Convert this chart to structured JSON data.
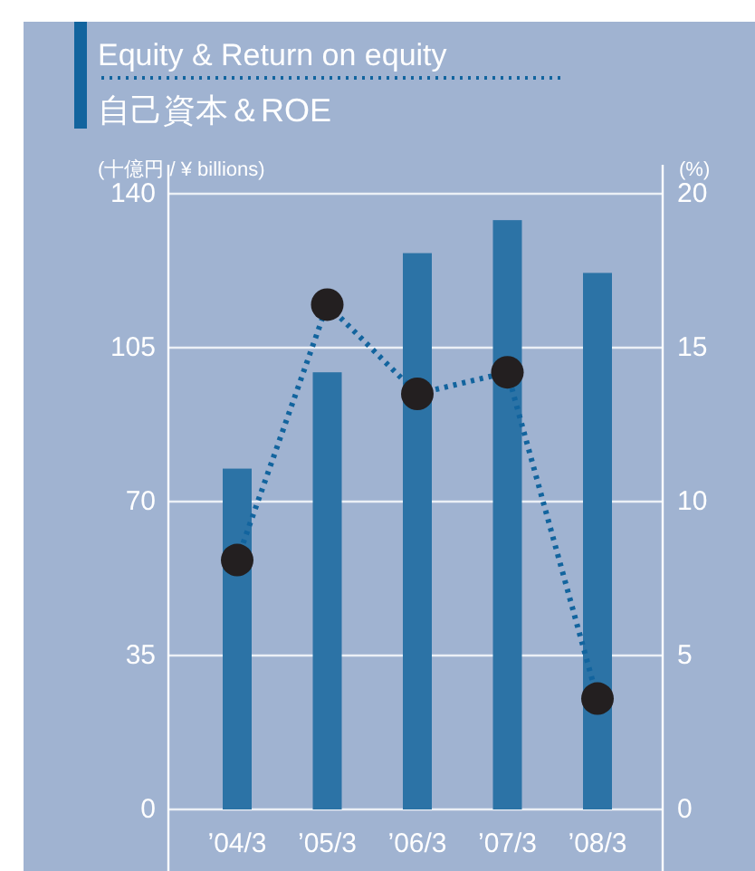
{
  "chart_data": {
    "type": "bar",
    "title": "Equity & Return on equity",
    "subtitle": "自己資本＆ROE",
    "ylabel": "(十億円 / ¥ billions)",
    "y2label": "(%)",
    "categories": [
      "’04/3",
      "’05/3",
      "’06/3",
      "’07/3",
      "’08/3"
    ],
    "series": [
      {
        "color": "#2c73a6",
        "values": [
          77.5,
          99.4,
          126.5,
          134,
          122
        ]
      },
      {
        "type": "line",
        "axis": "y2",
        "color": "#12649e",
        "colors": [
          "#231f20",
          "#231f20",
          "#231f20",
          "#231f20",
          "#231f20"
        ],
        "marker": "circle",
        "line_style": "dotted",
        "values": [
          8.1,
          16.4,
          13.5,
          14.2,
          3.6
        ]
      }
    ],
    "ylim": [
      0,
      140
    ],
    "yticks": [
      0,
      35,
      70,
      105,
      140
    ],
    "y2lim": [
      0,
      20
    ],
    "y2ticks": [
      0,
      5,
      10,
      15,
      20
    ],
    "grid": "y"
  }
}
